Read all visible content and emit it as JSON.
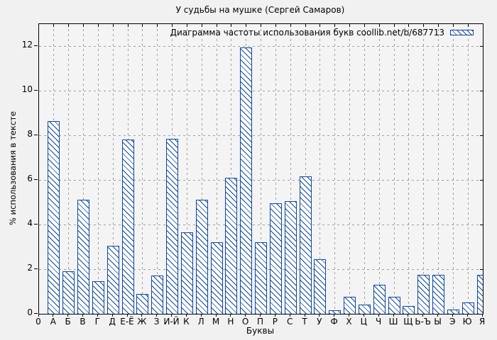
{
  "title": "У судьбы на мушке (Сергей Самаров)",
  "legend": {
    "label": "Диаграмма частоты использования букв coollib.net/b/687713"
  },
  "axes": {
    "xlabel": "Буквы",
    "ylabel": "% использования в тексте",
    "x_origin_label": "0",
    "yticks": [
      0,
      2,
      4,
      6,
      8,
      10,
      12
    ]
  },
  "colors": {
    "bar": "#0d47a1",
    "grid": "#9e9e9e",
    "figure_background": "#f1f1f1",
    "plot_background": "#f4f4f4",
    "border": "#000000"
  },
  "chart_data": {
    "type": "bar",
    "title": "У судьбы на мушке (Сергей Самаров)",
    "legend": [
      "Диаграмма частоты использования букв coollib.net/b/687713"
    ],
    "legend_position": "top-right inside",
    "categories": [
      "А",
      "Б",
      "В",
      "Г",
      "Д",
      "Е-Ё",
      "Ж",
      "З",
      "И-Й",
      "К",
      "Л",
      "М",
      "Н",
      "О",
      "П",
      "Р",
      "С",
      "Т",
      "У",
      "Ф",
      "Х",
      "Ц",
      "Ч",
      "Ш",
      "Щ",
      "Ь-Ъ",
      "Ы",
      "Э",
      "Ю",
      "Я"
    ],
    "values": [
      8.65,
      1.9,
      5.1,
      1.45,
      3.05,
      7.8,
      0.9,
      1.7,
      7.85,
      3.65,
      5.1,
      3.2,
      6.1,
      11.95,
      3.2,
      4.95,
      5.05,
      6.15,
      2.45,
      0.15,
      0.75,
      0.4,
      1.3,
      0.75,
      0.35,
      1.75,
      1.75,
      0.2,
      0.5,
      1.75
    ],
    "xlabel": "Буквы",
    "ylabel": "% использования в тексте",
    "ylim": [
      0,
      12.95
    ],
    "yticks": [
      0,
      2,
      4,
      6,
      8,
      10,
      12
    ],
    "grid": true,
    "bar_style": "white fill, blue border, blue diagonal hatch"
  }
}
